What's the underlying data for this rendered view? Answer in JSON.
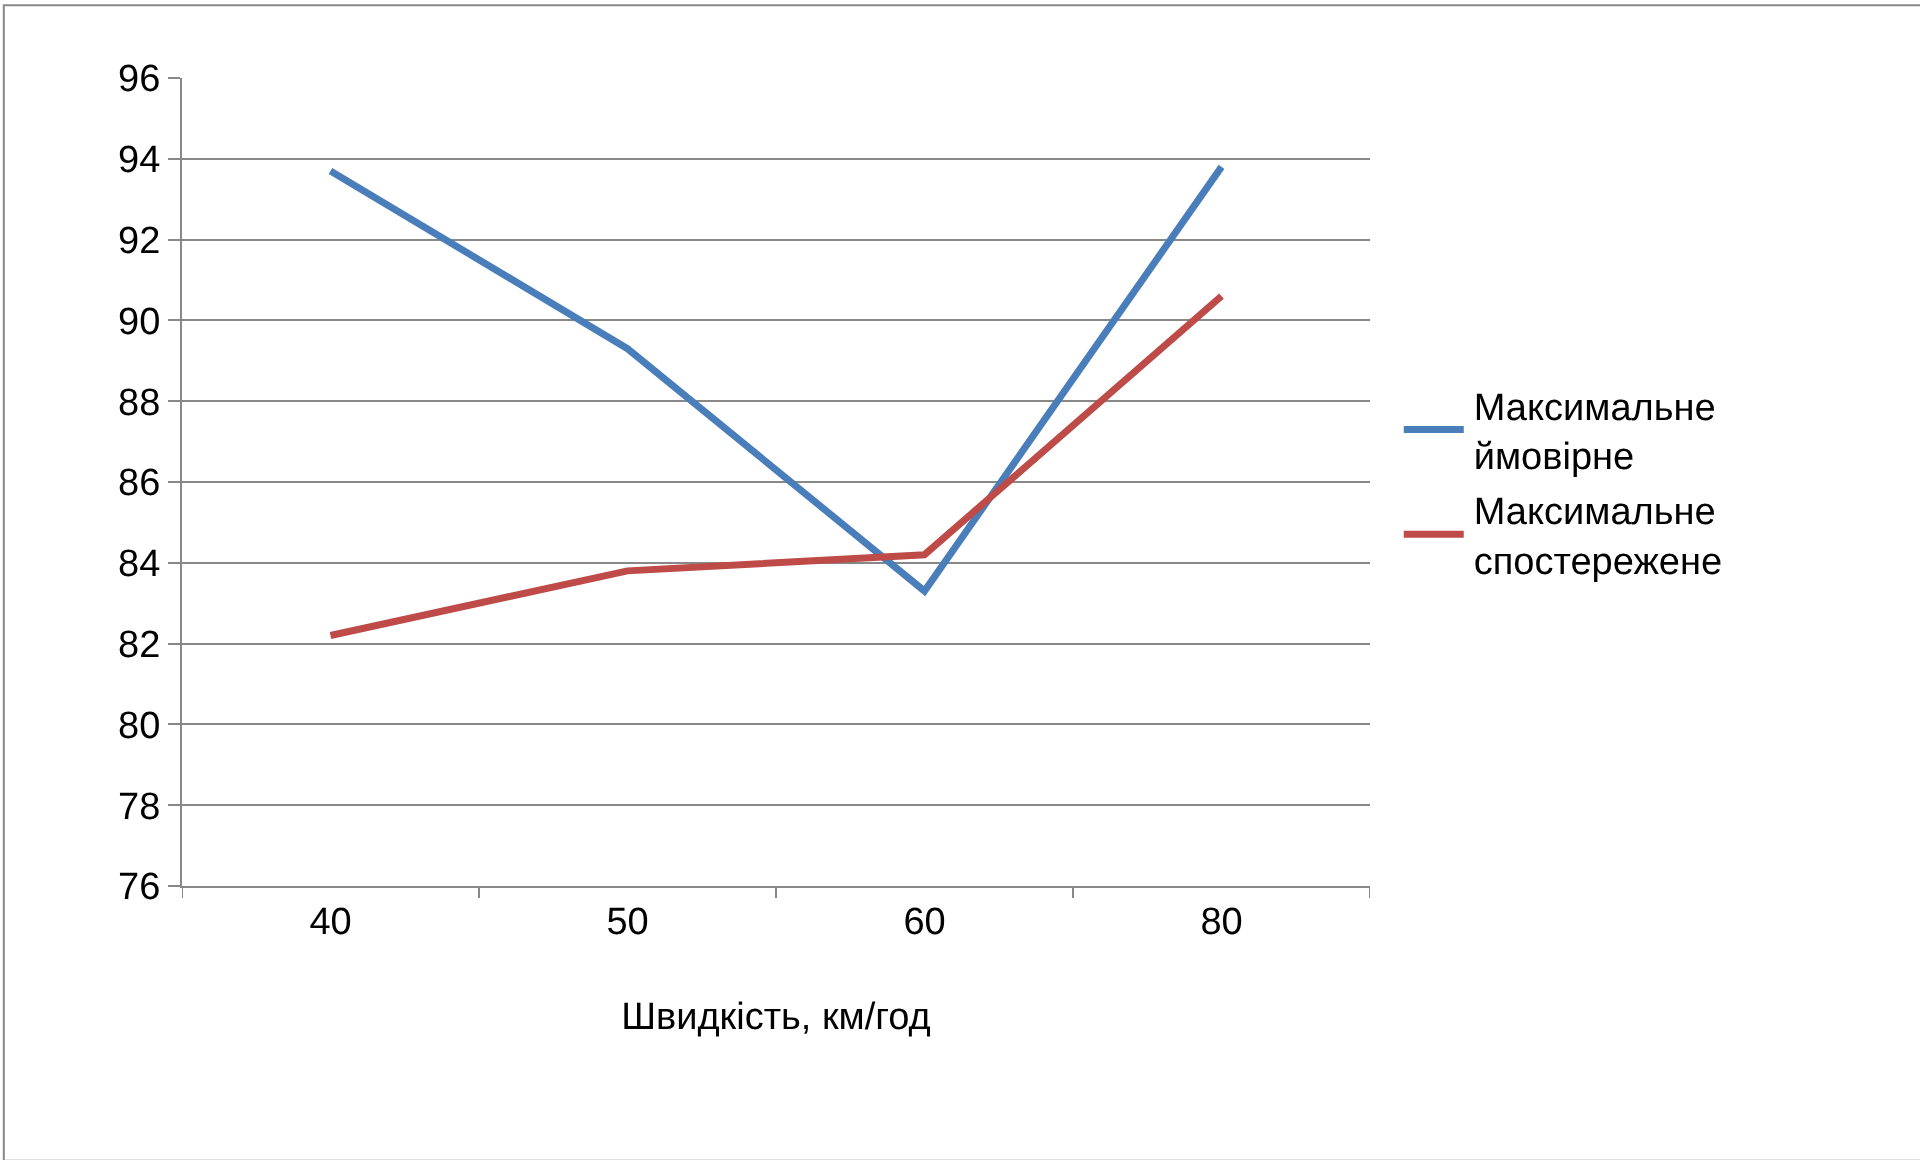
{
  "chart_data": {
    "type": "line",
    "xlabel": "Швидкість, км/год",
    "categories": [
      "40",
      "50",
      "60",
      "80"
    ],
    "series": [
      {
        "name": "Максимальне ймовірне",
        "color": "#4a7ebb",
        "values": [
          93.7,
          89.3,
          83.3,
          93.8
        ]
      },
      {
        "name": "Максимальне спостережене",
        "color": "#be4b48",
        "values": [
          82.2,
          83.8,
          84.2,
          90.6
        ]
      }
    ],
    "ylim": [
      76,
      96
    ],
    "yticks": [
      76,
      78,
      80,
      82,
      84,
      86,
      88,
      90,
      92,
      94,
      96
    ],
    "grid": "y",
    "legend": "right",
    "marker": "none",
    "line_style": "solid"
  }
}
